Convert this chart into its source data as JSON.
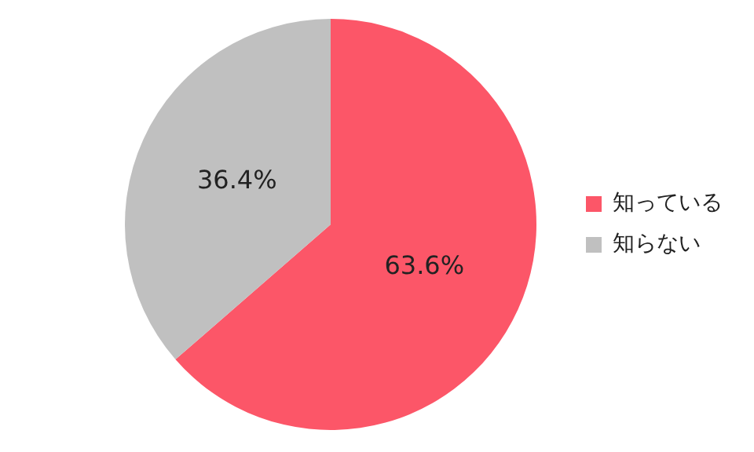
{
  "chart_data": {
    "type": "pie",
    "categories": [
      "知っている",
      "知らない"
    ],
    "values": [
      63.6,
      36.4
    ],
    "colors": [
      "#fc5668",
      "#c0c0c0"
    ],
    "value_labels": [
      "63.6%",
      "36.4%"
    ],
    "legend": "right"
  }
}
